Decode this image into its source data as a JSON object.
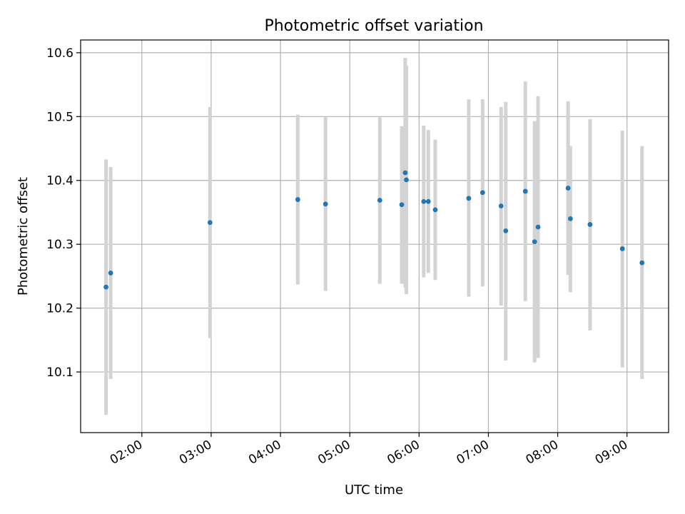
{
  "chart_data": {
    "type": "scatter",
    "title": "Photometric offset variation",
    "xlabel": "UTC time",
    "ylabel": "Photometric offset",
    "xlim": [
      "01:07",
      "09:36"
    ],
    "ylim": [
      10.005,
      10.62
    ],
    "x_ticks": [
      "02:00",
      "03:00",
      "04:00",
      "05:00",
      "06:00",
      "07:00",
      "08:00",
      "09:00"
    ],
    "y_ticks": [
      10.1,
      10.2,
      10.3,
      10.4,
      10.5,
      10.6
    ],
    "y_tick_labels": [
      "10.1",
      "10.2",
      "10.3",
      "10.4",
      "10.5",
      "10.6"
    ],
    "grid": true,
    "colors": {
      "point": "#1f77b4",
      "errorbar": "#d3d3d3",
      "grid": "#b0b0b0"
    },
    "series": [
      {
        "points": [
          {
            "x": "01:29",
            "y": 10.233,
            "ylow": 10.033,
            "yhigh": 10.433
          },
          {
            "x": "01:33",
            "y": 10.255,
            "ylow": 10.089,
            "yhigh": 10.421
          },
          {
            "x": "02:59",
            "y": 10.334,
            "ylow": 10.153,
            "yhigh": 10.515
          },
          {
            "x": "04:15",
            "y": 10.37,
            "ylow": 10.237,
            "yhigh": 10.503
          },
          {
            "x": "04:39",
            "y": 10.363,
            "ylow": 10.227,
            "yhigh": 10.499
          },
          {
            "x": "05:26",
            "y": 10.369,
            "ylow": 10.238,
            "yhigh": 10.499
          },
          {
            "x": "05:45",
            "y": 10.362,
            "ylow": 10.238,
            "yhigh": 10.485
          },
          {
            "x": "05:48",
            "y": 10.412,
            "ylow": 10.232,
            "yhigh": 10.592
          },
          {
            "x": "05:49",
            "y": 10.401,
            "ylow": 10.222,
            "yhigh": 10.58
          },
          {
            "x": "06:04",
            "y": 10.367,
            "ylow": 10.248,
            "yhigh": 10.486
          },
          {
            "x": "06:08",
            "y": 10.367,
            "ylow": 10.255,
            "yhigh": 10.479
          },
          {
            "x": "06:14",
            "y": 10.354,
            "ylow": 10.244,
            "yhigh": 10.464
          },
          {
            "x": "06:43",
            "y": 10.372,
            "ylow": 10.218,
            "yhigh": 10.527
          },
          {
            "x": "06:55",
            "y": 10.381,
            "ylow": 10.234,
            "yhigh": 10.527
          },
          {
            "x": "07:11",
            "y": 10.36,
            "ylow": 10.204,
            "yhigh": 10.515
          },
          {
            "x": "07:15",
            "y": 10.321,
            "ylow": 10.118,
            "yhigh": 10.523
          },
          {
            "x": "07:32",
            "y": 10.383,
            "ylow": 10.211,
            "yhigh": 10.555
          },
          {
            "x": "07:40",
            "y": 10.304,
            "ylow": 10.115,
            "yhigh": 10.493
          },
          {
            "x": "07:43",
            "y": 10.327,
            "ylow": 10.122,
            "yhigh": 10.532
          },
          {
            "x": "08:09",
            "y": 10.388,
            "ylow": 10.252,
            "yhigh": 10.524
          },
          {
            "x": "08:11",
            "y": 10.34,
            "ylow": 10.225,
            "yhigh": 10.454
          },
          {
            "x": "08:28",
            "y": 10.331,
            "ylow": 10.165,
            "yhigh": 10.496
          },
          {
            "x": "08:56",
            "y": 10.293,
            "ylow": 10.107,
            "yhigh": 10.478
          },
          {
            "x": "09:13",
            "y": 10.271,
            "ylow": 10.089,
            "yhigh": 10.454
          }
        ]
      }
    ]
  }
}
